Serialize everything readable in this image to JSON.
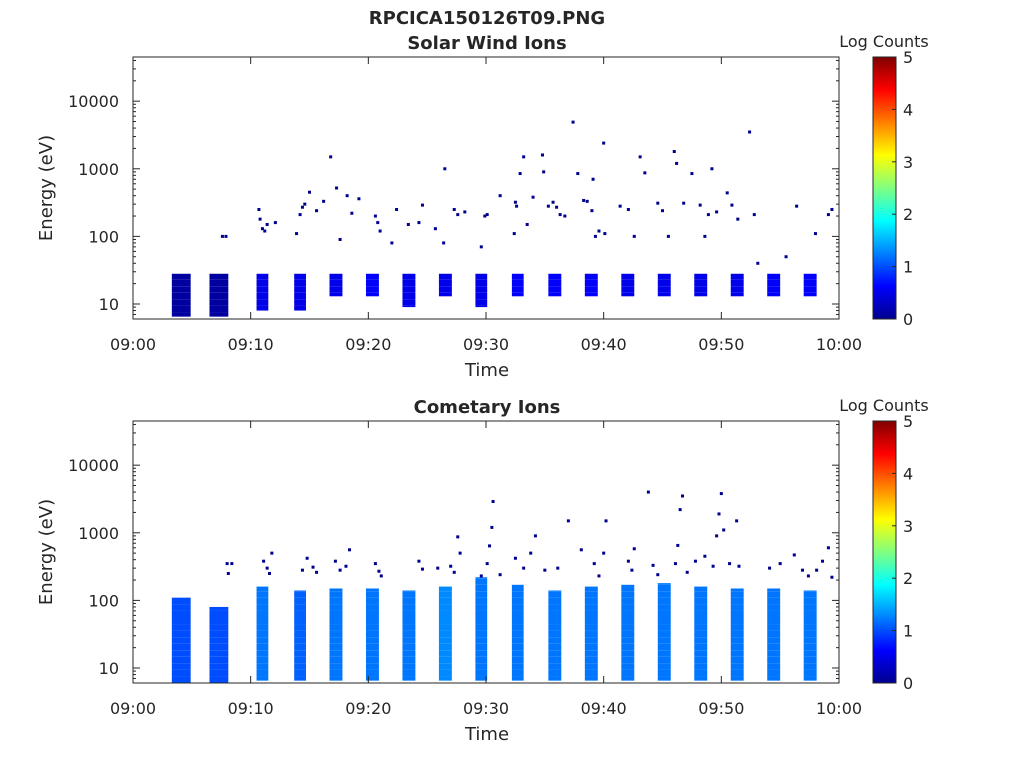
{
  "figure_title": "RPCICA150126T09.PNG",
  "colors": {
    "jet": [
      "#00008f",
      "#0000ff",
      "#0080ff",
      "#00ffff",
      "#80ff80",
      "#ffff00",
      "#ff8000",
      "#ff0000",
      "#800000"
    ]
  },
  "chart_data": [
    {
      "type": "heatmap",
      "title": "Solar Wind Ions",
      "xlabel": "Time",
      "ylabel": "Energy (eV)",
      "x_ticks": [
        "09:00",
        "09:10",
        "09:20",
        "09:30",
        "09:40",
        "09:50",
        "10:00"
      ],
      "x_range_minutes": [
        0,
        60
      ],
      "y_scale": "log",
      "y_range": [
        6,
        45000
      ],
      "y_ticks": [
        10,
        100,
        1000,
        10000
      ],
      "y_tick_labels": [
        "10",
        "100",
        "1000",
        "10000"
      ],
      "colorbar": {
        "title": "Log Counts",
        "range": [
          0,
          5
        ],
        "ticks": [
          "0",
          "1",
          "2",
          "3",
          "4",
          "5"
        ]
      },
      "sweep_blocks": [
        {
          "t0": 3.3,
          "t1": 4.9,
          "emin": 6.5,
          "emax": 28,
          "level": 0.1
        },
        {
          "t0": 6.5,
          "t1": 8.1,
          "emin": 6.5,
          "emax": 28,
          "level": 0.1
        },
        {
          "t0": 10.5,
          "t1": 11.5,
          "emin": 8,
          "emax": 28,
          "level": 0.5
        },
        {
          "t0": 13.7,
          "t1": 14.7,
          "emin": 8,
          "emax": 28,
          "level": 0.5
        },
        {
          "t0": 16.7,
          "t1": 17.8,
          "emin": 13,
          "emax": 28,
          "level": 0.5
        },
        {
          "t0": 19.8,
          "t1": 20.9,
          "emin": 13,
          "emax": 28,
          "level": 0.6
        },
        {
          "t0": 22.9,
          "t1": 24.0,
          "emin": 9,
          "emax": 28,
          "level": 0.5
        },
        {
          "t0": 26.0,
          "t1": 27.1,
          "emin": 13,
          "emax": 28,
          "level": 0.5
        },
        {
          "t0": 29.1,
          "t1": 30.1,
          "emin": 9,
          "emax": 28,
          "level": 0.5
        },
        {
          "t0": 32.2,
          "t1": 33.2,
          "emin": 13,
          "emax": 28,
          "level": 0.6
        },
        {
          "t0": 35.3,
          "t1": 36.4,
          "emin": 13,
          "emax": 28,
          "level": 0.6
        },
        {
          "t0": 38.4,
          "t1": 39.5,
          "emin": 13,
          "emax": 28,
          "level": 0.6
        },
        {
          "t0": 41.5,
          "t1": 42.6,
          "emin": 13,
          "emax": 28,
          "level": 0.5
        },
        {
          "t0": 44.6,
          "t1": 45.7,
          "emin": 13,
          "emax": 28,
          "level": 0.5
        },
        {
          "t0": 47.7,
          "t1": 48.8,
          "emin": 13,
          "emax": 28,
          "level": 0.5
        },
        {
          "t0": 50.8,
          "t1": 51.9,
          "emin": 13,
          "emax": 28,
          "level": 0.5
        },
        {
          "t0": 53.9,
          "t1": 55.0,
          "emin": 13,
          "emax": 28,
          "level": 0.6
        },
        {
          "t0": 57.0,
          "t1": 58.1,
          "emin": 13,
          "emax": 28,
          "level": 0.6
        }
      ],
      "scatter": [
        [
          7.6,
          100
        ],
        [
          7.9,
          100
        ],
        [
          10.7,
          250
        ],
        [
          10.8,
          180
        ],
        [
          11.0,
          130
        ],
        [
          11.2,
          120
        ],
        [
          11.4,
          150
        ],
        [
          12.1,
          160
        ],
        [
          13.9,
          110
        ],
        [
          14.2,
          210
        ],
        [
          14.4,
          270
        ],
        [
          14.6,
          300
        ],
        [
          15.0,
          450
        ],
        [
          15.6,
          240
        ],
        [
          16.2,
          330
        ],
        [
          16.8,
          1500
        ],
        [
          17.3,
          520
        ],
        [
          17.6,
          90
        ],
        [
          18.2,
          400
        ],
        [
          18.6,
          220
        ],
        [
          19.2,
          360
        ],
        [
          20.6,
          200
        ],
        [
          20.8,
          160
        ],
        [
          21.0,
          120
        ],
        [
          22.0,
          80
        ],
        [
          22.4,
          250
        ],
        [
          23.4,
          150
        ],
        [
          24.3,
          160
        ],
        [
          24.6,
          290
        ],
        [
          25.7,
          130
        ],
        [
          26.4,
          80
        ],
        [
          26.5,
          1000
        ],
        [
          27.3,
          250
        ],
        [
          27.6,
          210
        ],
        [
          28.2,
          230
        ],
        [
          29.6,
          70
        ],
        [
          29.9,
          200
        ],
        [
          30.1,
          210
        ],
        [
          31.2,
          400
        ],
        [
          32.4,
          110
        ],
        [
          32.5,
          320
        ],
        [
          32.6,
          280
        ],
        [
          32.9,
          850
        ],
        [
          33.2,
          1500
        ],
        [
          33.5,
          150
        ],
        [
          34.0,
          380
        ],
        [
          34.8,
          1600
        ],
        [
          34.9,
          900
        ],
        [
          35.3,
          280
        ],
        [
          35.7,
          320
        ],
        [
          36.0,
          270
        ],
        [
          36.3,
          210
        ],
        [
          36.7,
          200
        ],
        [
          37.4,
          4900
        ],
        [
          37.8,
          850
        ],
        [
          38.3,
          340
        ],
        [
          38.6,
          330
        ],
        [
          39.0,
          240
        ],
        [
          39.1,
          700
        ],
        [
          39.3,
          100
        ],
        [
          39.6,
          120
        ],
        [
          40.0,
          2400
        ],
        [
          40.1,
          110
        ],
        [
          41.4,
          280
        ],
        [
          42.1,
          250
        ],
        [
          42.6,
          100
        ],
        [
          43.1,
          1500
        ],
        [
          43.5,
          870
        ],
        [
          44.6,
          310
        ],
        [
          45.0,
          240
        ],
        [
          45.5,
          100
        ],
        [
          46.0,
          1800
        ],
        [
          46.2,
          1200
        ],
        [
          46.8,
          310
        ],
        [
          47.5,
          850
        ],
        [
          48.2,
          290
        ],
        [
          48.6,
          100
        ],
        [
          48.9,
          210
        ],
        [
          49.2,
          1000
        ],
        [
          49.6,
          230
        ],
        [
          50.5,
          440
        ],
        [
          50.9,
          290
        ],
        [
          51.4,
          180
        ],
        [
          52.4,
          3500
        ],
        [
          52.8,
          210
        ],
        [
          53.1,
          40
        ],
        [
          55.5,
          50
        ],
        [
          56.4,
          280
        ],
        [
          58.0,
          110
        ],
        [
          59.1,
          210
        ],
        [
          59.4,
          250
        ]
      ]
    },
    {
      "type": "heatmap",
      "title": "Cometary Ions",
      "xlabel": "Time",
      "ylabel": "Energy (eV)",
      "x_ticks": [
        "09:00",
        "09:10",
        "09:20",
        "09:30",
        "09:40",
        "09:50",
        "10:00"
      ],
      "x_range_minutes": [
        0,
        60
      ],
      "y_scale": "log",
      "y_range": [
        6,
        45000
      ],
      "y_ticks": [
        10,
        100,
        1000,
        10000
      ],
      "y_tick_labels": [
        "10",
        "100",
        "1000",
        "10000"
      ],
      "colorbar": {
        "title": "Log Counts",
        "range": [
          0,
          5
        ],
        "ticks": [
          "0",
          "1",
          "2",
          "3",
          "4",
          "5"
        ]
      },
      "sweep_blocks": [
        {
          "t0": 3.3,
          "t1": 4.9,
          "emin": 6,
          "emax": 110,
          "level": 1.0
        },
        {
          "t0": 6.5,
          "t1": 8.1,
          "emin": 6,
          "emax": 80,
          "level": 1.0
        },
        {
          "t0": 10.5,
          "t1": 11.5,
          "emin": 6.5,
          "emax": 160,
          "level": 1.2
        },
        {
          "t0": 13.7,
          "t1": 14.7,
          "emin": 6.5,
          "emax": 140,
          "level": 1.1
        },
        {
          "t0": 16.7,
          "t1": 17.8,
          "emin": 6.5,
          "emax": 150,
          "level": 1.2
        },
        {
          "t0": 19.8,
          "t1": 20.9,
          "emin": 6.5,
          "emax": 150,
          "level": 1.2
        },
        {
          "t0": 22.9,
          "t1": 24.0,
          "emin": 6.5,
          "emax": 140,
          "level": 1.2
        },
        {
          "t0": 26.0,
          "t1": 27.1,
          "emin": 6.5,
          "emax": 160,
          "level": 1.3
        },
        {
          "t0": 29.1,
          "t1": 30.1,
          "emin": 6.5,
          "emax": 220,
          "level": 1.2
        },
        {
          "t0": 32.2,
          "t1": 33.2,
          "emin": 6.5,
          "emax": 170,
          "level": 1.2
        },
        {
          "t0": 35.3,
          "t1": 36.4,
          "emin": 6.5,
          "emax": 140,
          "level": 1.2
        },
        {
          "t0": 38.4,
          "t1": 39.5,
          "emin": 6.5,
          "emax": 160,
          "level": 1.2
        },
        {
          "t0": 41.5,
          "t1": 42.6,
          "emin": 6.5,
          "emax": 170,
          "level": 1.2
        },
        {
          "t0": 44.6,
          "t1": 45.7,
          "emin": 6.5,
          "emax": 180,
          "level": 1.2
        },
        {
          "t0": 47.7,
          "t1": 48.8,
          "emin": 6.5,
          "emax": 160,
          "level": 1.2
        },
        {
          "t0": 50.8,
          "t1": 51.9,
          "emin": 6.5,
          "emax": 150,
          "level": 1.2
        },
        {
          "t0": 53.9,
          "t1": 55.0,
          "emin": 6.5,
          "emax": 150,
          "level": 1.2
        },
        {
          "t0": 57.0,
          "t1": 58.1,
          "emin": 6.5,
          "emax": 140,
          "level": 1.2
        }
      ],
      "scatter": [
        [
          8.0,
          350
        ],
        [
          8.4,
          350
        ],
        [
          8.1,
          250
        ],
        [
          11.1,
          380
        ],
        [
          11.4,
          300
        ],
        [
          11.6,
          250
        ],
        [
          11.8,
          500
        ],
        [
          14.4,
          280
        ],
        [
          14.8,
          420
        ],
        [
          15.3,
          310
        ],
        [
          15.6,
          260
        ],
        [
          17.2,
          380
        ],
        [
          17.6,
          280
        ],
        [
          18.1,
          320
        ],
        [
          18.4,
          560
        ],
        [
          20.6,
          350
        ],
        [
          20.9,
          270
        ],
        [
          21.1,
          230
        ],
        [
          24.3,
          380
        ],
        [
          24.6,
          290
        ],
        [
          25.9,
          300
        ],
        [
          27.0,
          320
        ],
        [
          27.3,
          260
        ],
        [
          27.6,
          870
        ],
        [
          27.8,
          500
        ],
        [
          29.6,
          230
        ],
        [
          30.1,
          350
        ],
        [
          30.3,
          640
        ],
        [
          30.5,
          1200
        ],
        [
          30.6,
          2900
        ],
        [
          31.2,
          240
        ],
        [
          32.5,
          420
        ],
        [
          33.2,
          300
        ],
        [
          33.8,
          500
        ],
        [
          34.2,
          900
        ],
        [
          35.0,
          280
        ],
        [
          36.1,
          300
        ],
        [
          37.0,
          1500
        ],
        [
          38.1,
          560
        ],
        [
          39.2,
          350
        ],
        [
          39.6,
          230
        ],
        [
          40.0,
          500
        ],
        [
          40.2,
          1500
        ],
        [
          42.1,
          380
        ],
        [
          42.4,
          280
        ],
        [
          42.6,
          580
        ],
        [
          43.8,
          4000
        ],
        [
          44.2,
          330
        ],
        [
          44.6,
          240
        ],
        [
          46.1,
          350
        ],
        [
          46.3,
          650
        ],
        [
          46.5,
          2200
        ],
        [
          46.7,
          3500
        ],
        [
          47.1,
          260
        ],
        [
          47.8,
          380
        ],
        [
          48.6,
          450
        ],
        [
          49.3,
          320
        ],
        [
          49.6,
          900
        ],
        [
          49.8,
          1900
        ],
        [
          50.0,
          3800
        ],
        [
          50.2,
          1100
        ],
        [
          50.7,
          350
        ],
        [
          51.3,
          1500
        ],
        [
          51.5,
          320
        ],
        [
          54.1,
          300
        ],
        [
          55.0,
          350
        ],
        [
          56.2,
          470
        ],
        [
          56.9,
          280
        ],
        [
          57.4,
          230
        ],
        [
          58.1,
          280
        ],
        [
          58.6,
          380
        ],
        [
          59.1,
          600
        ],
        [
          59.4,
          220
        ]
      ]
    }
  ]
}
